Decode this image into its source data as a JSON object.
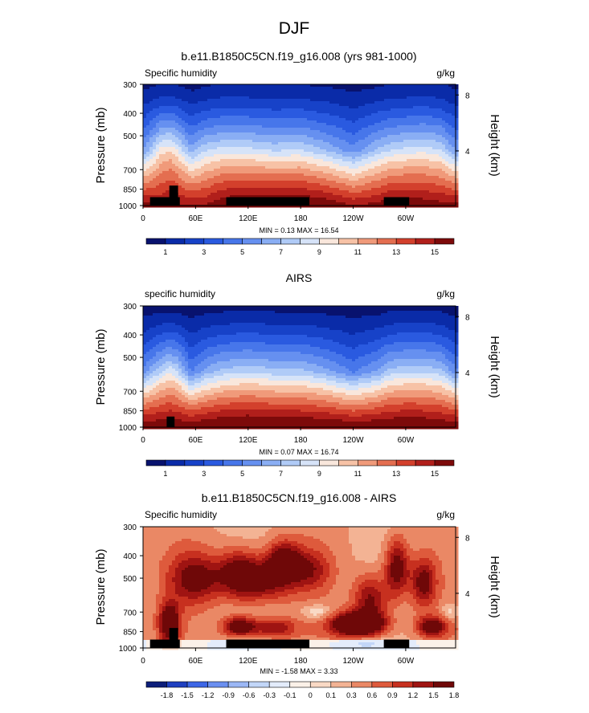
{
  "main_title": "DJF",
  "colors": {
    "abs_scale": [
      "#08126e",
      "#0a2ba8",
      "#1742c8",
      "#2a5ae0",
      "#4776ea",
      "#6690f0",
      "#8aaef4",
      "#b0cbf7",
      "#d6e3f8",
      "#f9e7dc",
      "#f7c2a6",
      "#f09a7a",
      "#e46e50",
      "#d3402c",
      "#b11f1b",
      "#7d0a0a"
    ],
    "diff_scale": [
      "#0d1e7a",
      "#1f40c0",
      "#3d66e6",
      "#6a8ff0",
      "#9bb7f5",
      "#c2d6f8",
      "#e3ecfb",
      "#fbf1e8",
      "#f9d9c5",
      "#f3b394",
      "#ea8865",
      "#de5a3c",
      "#c7301f",
      "#9f1412",
      "#6f0808"
    ],
    "topography": "#000000"
  },
  "chart_data": [
    {
      "type": "heatmap",
      "title": "b.e11.B1850C5CN.f19_g16.008 (yrs 981-1000)",
      "left_label": "Specific humidity",
      "right_label": "g/kg",
      "ylabel": "Pressure (mb)",
      "right_axis_label": "Height (km)",
      "x_ticks": [
        "0",
        "60E",
        "120E",
        "180",
        "120W",
        "60W"
      ],
      "x_values": [
        0,
        60,
        120,
        180,
        240,
        300
      ],
      "xlim": [
        0,
        357
      ],
      "y_ticks": [
        "300",
        "400",
        "500",
        "700",
        "850",
        "1000"
      ],
      "y_values": [
        300,
        400,
        500,
        700,
        850,
        1000
      ],
      "ylim": [
        300,
        1000
      ],
      "y_scale": "log",
      "height_ticks": [
        "8",
        "4"
      ],
      "height_values": [
        8,
        4
      ],
      "min_max_text": "MIN =  0.13  MAX = 16.54",
      "colorbar_labels": [
        "1",
        "3",
        "5",
        "7",
        "9",
        "11",
        "13",
        "15"
      ],
      "colorbar_levels": [
        0,
        1,
        2,
        3,
        4,
        5,
        6,
        7,
        8,
        9,
        10,
        11,
        12,
        13,
        14,
        15,
        16
      ],
      "field": {
        "lon": [
          0,
          20,
          30,
          40,
          55,
          70,
          90,
          120,
          150,
          180,
          210,
          240,
          270,
          280,
          300,
          320,
          340,
          357
        ],
        "p_mid": [
          6,
          9.5,
          10,
          9,
          6.5,
          8,
          8.5,
          8.5,
          8,
          8.2,
          7,
          5.5,
          7.5,
          8,
          8.5,
          8.7,
          8.2,
          6
        ],
        "h300": [
          0.8,
          1,
          1,
          1,
          0.7,
          0.9,
          1.1,
          1.1,
          1,
          1,
          0.9,
          0.7,
          0.9,
          1,
          1.1,
          1.2,
          1.1,
          0.8
        ],
        "h1000": [
          15.5,
          15,
          15.5,
          15.2,
          15,
          15,
          16,
          16.5,
          16.5,
          16.5,
          16,
          15,
          15.5,
          16,
          16,
          15.8,
          15.5,
          15.5
        ]
      },
      "topography": [
        {
          "lon_start": 8,
          "lon_end": 42,
          "p_top": 920
        },
        {
          "lon_start": 30,
          "lon_end": 40,
          "p_top": 820
        },
        {
          "lon_start": 95,
          "lon_end": 190,
          "p_top": 920
        },
        {
          "lon_start": 275,
          "lon_end": 304,
          "p_top": 920
        }
      ]
    },
    {
      "type": "heatmap",
      "title": "AIRS",
      "left_label": "specific humidity",
      "right_label": "g/kg",
      "ylabel": "Pressure (mb)",
      "right_axis_label": "Height (km)",
      "x_ticks": [
        "0",
        "60E",
        "120E",
        "180",
        "120W",
        "60W"
      ],
      "x_values": [
        0,
        60,
        120,
        180,
        240,
        300
      ],
      "xlim": [
        0,
        357
      ],
      "y_ticks": [
        "300",
        "400",
        "500",
        "700",
        "850",
        "1000"
      ],
      "y_values": [
        300,
        400,
        500,
        700,
        850,
        1000
      ],
      "ylim": [
        300,
        1000
      ],
      "y_scale": "log",
      "height_ticks": [
        "8",
        "4"
      ],
      "height_values": [
        8,
        4
      ],
      "min_max_text": "MIN =  0.07  MAX = 16.74",
      "colorbar_labels": [
        "1",
        "3",
        "5",
        "7",
        "9",
        "11",
        "13",
        "15"
      ],
      "colorbar_levels": [
        0,
        1,
        2,
        3,
        4,
        5,
        6,
        7,
        8,
        9,
        10,
        11,
        12,
        13,
        14,
        15,
        16
      ],
      "field": {
        "lon": [
          0,
          20,
          30,
          40,
          55,
          70,
          90,
          120,
          150,
          180,
          210,
          240,
          270,
          280,
          300,
          320,
          340,
          357
        ],
        "p_mid": [
          5.5,
          8,
          9,
          8,
          5,
          6.5,
          7.5,
          8,
          7.5,
          7.5,
          6.5,
          5,
          6.5,
          7.5,
          8,
          8,
          7.5,
          5.5
        ],
        "h300": [
          0.5,
          0.6,
          0.6,
          0.6,
          0.5,
          0.6,
          0.7,
          0.8,
          0.7,
          0.7,
          0.6,
          0.5,
          0.6,
          0.7,
          0.8,
          0.8,
          0.7,
          0.5
        ],
        "h1000": [
          16,
          16,
          16,
          16,
          16,
          16.2,
          16.5,
          16.7,
          16.6,
          16.5,
          16.4,
          16,
          16.2,
          16.3,
          16.4,
          16.3,
          16.1,
          16
        ]
      },
      "topography": [
        {
          "lon_start": 27,
          "lon_end": 36,
          "p_top": 900
        }
      ]
    },
    {
      "type": "heatmap",
      "title": "b.e11.B1850C5CN.f19_g16.008 - AIRS",
      "left_label": "Specific humidity",
      "right_label": "g/kg",
      "ylabel": "Pressure (mb)",
      "right_axis_label": "Height (km)",
      "x_ticks": [
        "0",
        "60E",
        "120E",
        "180",
        "120W",
        "60W"
      ],
      "x_values": [
        0,
        60,
        120,
        180,
        240,
        300
      ],
      "xlim": [
        0,
        357
      ],
      "y_ticks": [
        "300",
        "400",
        "500",
        "700",
        "850",
        "1000"
      ],
      "y_values": [
        300,
        400,
        500,
        700,
        850,
        1000
      ],
      "ylim": [
        300,
        1000
      ],
      "y_scale": "log",
      "height_ticks": [
        "8",
        "4"
      ],
      "height_values": [
        8,
        4
      ],
      "min_max_text": "MIN = -1.58  MAX =  3.33",
      "colorbar_labels": [
        "-1.8",
        "-1.5",
        "-1.2",
        "-0.9",
        "-0.6",
        "-0.3",
        "-0.1",
        "0",
        "0.1",
        "0.3",
        "0.6",
        "0.9",
        "1.2",
        "1.5",
        "1.8"
      ],
      "colorbar_levels": [
        -1.8,
        -1.5,
        -1.2,
        -0.9,
        -0.6,
        -0.3,
        -0.1,
        0,
        0.1,
        0.3,
        0.6,
        0.9,
        1.2,
        1.5,
        1.8
      ],
      "field": {
        "blobs": [
          {
            "lon": 60,
            "p": 500,
            "a": 1.4,
            "lw": 30,
            "pw": 0.25
          },
          {
            "lon": 110,
            "p": 480,
            "a": 1.6,
            "lw": 25,
            "pw": 0.25
          },
          {
            "lon": 140,
            "p": 520,
            "a": 1.2,
            "lw": 30,
            "pw": 0.2
          },
          {
            "lon": 160,
            "p": 420,
            "a": 1.5,
            "lw": 20,
            "pw": 0.2
          },
          {
            "lon": 190,
            "p": 460,
            "a": 1.0,
            "lw": 25,
            "pw": 0.2
          },
          {
            "lon": 245,
            "p": 790,
            "a": 2.6,
            "lw": 30,
            "pw": 0.12
          },
          {
            "lon": 260,
            "p": 620,
            "a": 1.4,
            "lw": 20,
            "pw": 0.25
          },
          {
            "lon": 290,
            "p": 450,
            "a": 1.6,
            "lw": 14,
            "pw": 0.3
          },
          {
            "lon": 320,
            "p": 520,
            "a": 1.4,
            "lw": 15,
            "pw": 0.25
          },
          {
            "lon": 30,
            "p": 780,
            "a": 1.8,
            "lw": 12,
            "pw": 0.2
          },
          {
            "lon": 110,
            "p": 810,
            "a": 1.8,
            "lw": 20,
            "pw": 0.1
          },
          {
            "lon": 150,
            "p": 820,
            "a": 1.2,
            "lw": 25,
            "pw": 0.1
          },
          {
            "lon": 200,
            "p": 700,
            "a": -0.6,
            "lw": 20,
            "pw": 0.08
          },
          {
            "lon": 330,
            "p": 810,
            "a": 1.5,
            "lw": 18,
            "pw": 0.1
          },
          {
            "lon": 250,
            "p": 960,
            "a": -0.8,
            "lw": 30,
            "pw": 0.05
          },
          {
            "lon": 350,
            "p": 700,
            "a": -0.5,
            "lw": 10,
            "pw": 0.1
          }
        ],
        "base": 0.5
      },
      "topography": [
        {
          "lon_start": 8,
          "lon_end": 42,
          "p_top": 920
        },
        {
          "lon_start": 30,
          "lon_end": 40,
          "p_top": 820
        },
        {
          "lon_start": 95,
          "lon_end": 190,
          "p_top": 920
        },
        {
          "lon_start": 275,
          "lon_end": 304,
          "p_top": 920
        }
      ]
    }
  ]
}
